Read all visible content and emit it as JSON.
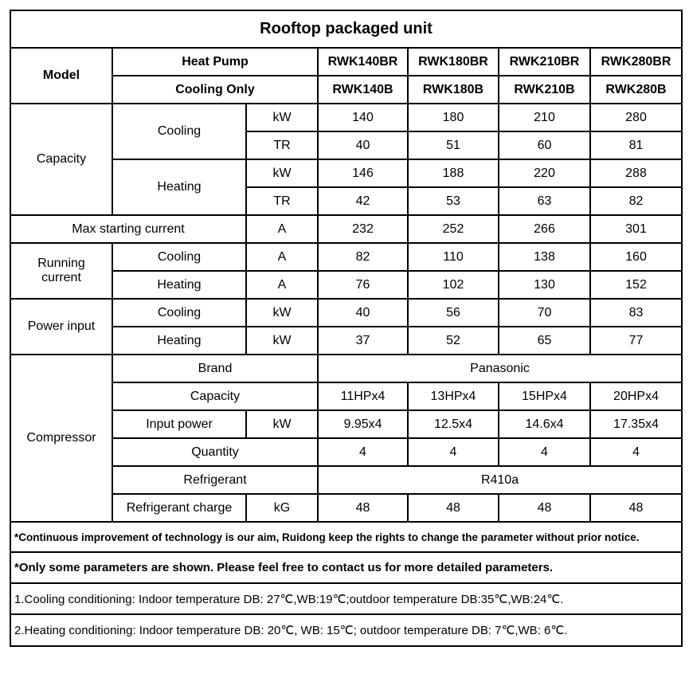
{
  "title": "Rooftop packaged unit",
  "model": {
    "label": "Model",
    "heat_pump_label": "Heat Pump",
    "cooling_only_label": "Cooling Only",
    "heat_pump": [
      "RWK140BR",
      "RWK180BR",
      "RWK210BR",
      "RWK280BR"
    ],
    "cooling_only": [
      "RWK140B",
      "RWK180B",
      "RWK210B",
      "RWK280B"
    ]
  },
  "capacity": {
    "label": "Capacity",
    "cooling_label": "Cooling",
    "heating_label": "Heating",
    "cooling_kw": {
      "unit": "kW",
      "values": [
        "140",
        "180",
        "210",
        "280"
      ]
    },
    "cooling_tr": {
      "unit": "TR",
      "values": [
        "40",
        "51",
        "60",
        "81"
      ]
    },
    "heating_kw": {
      "unit": "kW",
      "values": [
        "146",
        "188",
        "220",
        "288"
      ]
    },
    "heating_tr": {
      "unit": "TR",
      "values": [
        "42",
        "53",
        "63",
        "82"
      ]
    }
  },
  "max_starting_current": {
    "label": "Max starting current",
    "unit": "A",
    "values": [
      "232",
      "252",
      "266",
      "301"
    ]
  },
  "running_current": {
    "label": "Running current",
    "cooling": {
      "label": "Cooling",
      "unit": "A",
      "values": [
        "82",
        "110",
        "138",
        "160"
      ]
    },
    "heating": {
      "label": "Heating",
      "unit": "A",
      "values": [
        "76",
        "102",
        "130",
        "152"
      ]
    }
  },
  "power_input": {
    "label": "Power input",
    "cooling": {
      "label": "Cooling",
      "unit": "kW",
      "values": [
        "40",
        "56",
        "70",
        "83"
      ]
    },
    "heating": {
      "label": "Heating",
      "unit": "kW",
      "values": [
        "37",
        "52",
        "65",
        "77"
      ]
    }
  },
  "compressor": {
    "label": "Compressor",
    "brand": {
      "label": "Brand",
      "value": "Panasonic"
    },
    "capacity": {
      "label": "Capacity",
      "values": [
        "11HPx4",
        "13HPx4",
        "15HPx4",
        "20HPx4"
      ]
    },
    "input_power": {
      "label": "Input power",
      "unit": "kW",
      "values": [
        "9.95x4",
        "12.5x4",
        "14.6x4",
        "17.35x4"
      ]
    },
    "quantity": {
      "label": "Quantity",
      "values": [
        "4",
        "4",
        "4",
        "4"
      ]
    },
    "refrigerant": {
      "label": "Refrigerant",
      "value": "R410a"
    },
    "refrigerant_charge": {
      "label": "Refrigerant charge",
      "unit": "kG",
      "values": [
        "48",
        "48",
        "48",
        "48"
      ]
    }
  },
  "notes": [
    "*Continuous improvement of technology is our aim, Ruidong keep the rights to change the parameter without prior notice.",
    "*Only some parameters are shown. Please feel free to contact us for more detailed parameters.",
    "1.Cooling conditioning: Indoor temperature DB: 27℃,WB:19℃;outdoor temperature DB:35℃,WB:24℃.",
    "2.Heating conditioning: Indoor temperature DB: 20℃, WB: 15℃; outdoor temperature DB: 7℃,WB: 6℃."
  ]
}
